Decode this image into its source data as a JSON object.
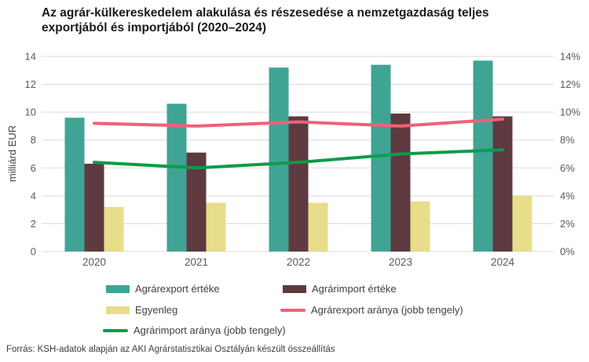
{
  "title_lines": {
    "line1": "Az agrár-külkereskedelem alakulása és részesedése a nemzetgazdaság teljes",
    "line2": "exportjából és importjából (2020–2024)"
  },
  "y_axis_left": {
    "label": "milliárd EUR",
    "ticks": [
      "0",
      "2",
      "4",
      "6",
      "8",
      "10",
      "12",
      "14"
    ]
  },
  "y_axis_right": {
    "ticks": [
      "0%",
      "2%",
      "4%",
      "6%",
      "8%",
      "10%",
      "12%",
      "14%"
    ]
  },
  "colors": {
    "grid": "#d9d9d9",
    "axis_text": "#595959",
    "body_text": "#404040"
  },
  "chart_data": {
    "type": "bar",
    "subtype": "grouped bars with two overlay lines",
    "categories": [
      "2020",
      "2021",
      "2022",
      "2023",
      "2024"
    ],
    "series": [
      {
        "id": "export",
        "name": "Agrárexport értéke",
        "type": "bar",
        "axis": "left",
        "color": "#3fa493",
        "values": [
          9.6,
          10.6,
          13.2,
          13.4,
          13.7
        ]
      },
      {
        "id": "import",
        "name": "Agrárimport értéke",
        "type": "bar",
        "axis": "left",
        "color": "#5e3a40",
        "values": [
          6.3,
          7.1,
          9.7,
          9.9,
          9.7
        ]
      },
      {
        "id": "balance",
        "name": "Egyenleg",
        "type": "bar",
        "axis": "left",
        "color": "#e8dd8a",
        "values": [
          3.2,
          3.5,
          3.5,
          3.6,
          4.0
        ]
      },
      {
        "id": "export_ratio",
        "name": "Agrárexport aránya (jobb tengely)",
        "type": "line",
        "axis": "right",
        "color": "#ee6179",
        "values": [
          9.2,
          9.0,
          9.3,
          9.0,
          9.5
        ]
      },
      {
        "id": "import_ratio",
        "name": "Agrárimport aránya (jobb tengely)",
        "type": "line",
        "axis": "right",
        "color": "#0d9b49",
        "values": [
          6.4,
          6.0,
          6.4,
          7.0,
          7.3
        ]
      }
    ],
    "ylabel_left": "milliárd EUR",
    "ylim_left": [
      0,
      14
    ],
    "ylim_right_percent": [
      0,
      14
    ],
    "grid": true,
    "legend_position": "bottom"
  },
  "source": "Forrás: KSH-adatok alapján az AKI Agrárstatisztikai Osztályán készült összeállítás"
}
